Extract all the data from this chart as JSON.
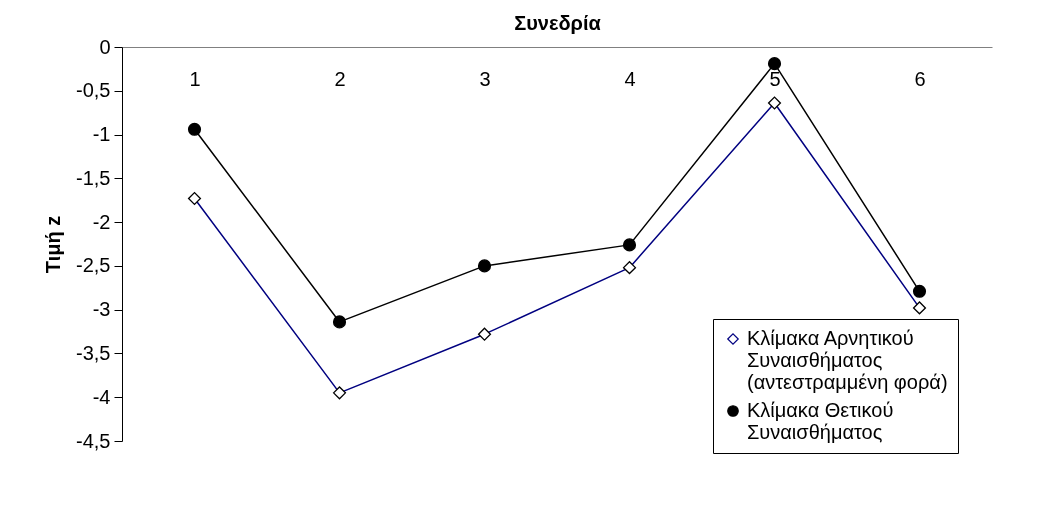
{
  "chart_data": {
    "type": "line",
    "xlabel": "Συνεδρία",
    "ylabel": "Τιμή z",
    "categories": [
      "1",
      "2",
      "3",
      "4",
      "5",
      "6"
    ],
    "ylim": [
      -4.5,
      0
    ],
    "yticks": [
      {
        "value": -4.5,
        "label": "-4,5"
      },
      {
        "value": -4,
        "label": "-4"
      },
      {
        "value": -3.5,
        "label": "-3,5"
      },
      {
        "value": -3,
        "label": "-3"
      },
      {
        "value": -2.5,
        "label": "-2,5"
      },
      {
        "value": -2,
        "label": "-2"
      },
      {
        "value": -1.5,
        "label": "-1,5"
      },
      {
        "value": -1,
        "label": "-1"
      },
      {
        "value": -0.5,
        "label": "-0,5"
      },
      {
        "value": 0,
        "label": "0"
      }
    ],
    "grid": false,
    "legend": "bottom right",
    "series": [
      {
        "name": "Κλίμακα Αρνητικού Συναισθήματος (αντεστραμμένη φορά)",
        "color": "#000080",
        "marker": "diamond",
        "values": [
          -1.73,
          -3.95,
          -3.28,
          -2.52,
          -0.64,
          -2.98
        ]
      },
      {
        "name": "Κλίμακα Θετικού Συναισθήματος",
        "color": "#000000",
        "marker": "circle",
        "values": [
          -0.94,
          -3.14,
          -2.5,
          -2.26,
          -0.19,
          -2.79
        ]
      }
    ]
  }
}
